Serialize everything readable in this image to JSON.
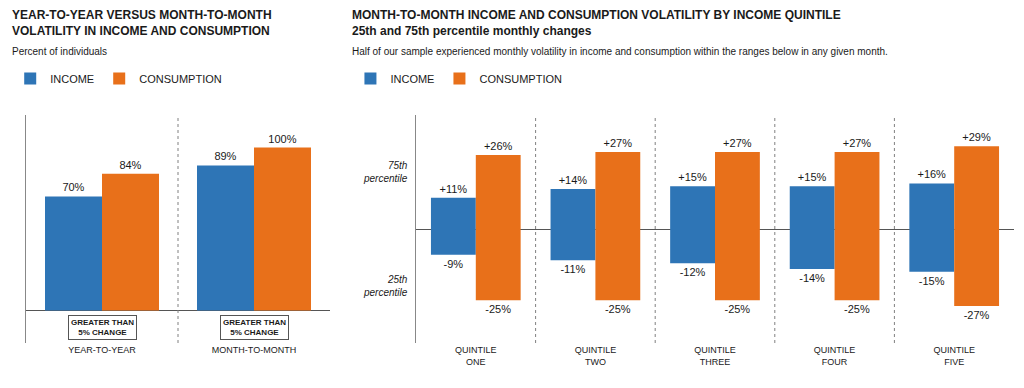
{
  "chart_data": [
    {
      "type": "bar",
      "title": "YEAR-TO-YEAR VERSUS MONTH-TO-MONTH\nVOLATILITY IN INCOME AND CONSUMPTION",
      "subtitle": "Percent of individuals",
      "categories": [
        "YEAR-TO-YEAR",
        "MONTH-TO-MONTH"
      ],
      "series": [
        {
          "name": "INCOME",
          "color": "#2E75B6",
          "values": [
            70,
            89
          ],
          "value_labels": [
            "70%",
            "89%"
          ]
        },
        {
          "name": "CONSUMPTION",
          "color": "#E8701A",
          "values": [
            84,
            100
          ],
          "value_labels": [
            "84%",
            "100%"
          ]
        }
      ],
      "annotations": [
        {
          "text": "GREATER THAN\n5% CHANGE",
          "category": "YEAR-TO-YEAR"
        },
        {
          "text": "GREATER THAN\n5% CHANGE",
          "category": "MONTH-TO-MONTH"
        }
      ],
      "ylim": [
        -20,
        120
      ],
      "tick_labels": "x",
      "grid": false,
      "legend": "top left",
      "data_labels": true
    },
    {
      "type": "bar",
      "title": "MONTH-TO-MONTH INCOME AND CONSUMPTION VOLATILITY BY INCOME QUINTILE\n25th and 75th percentile monthly changes",
      "subtitle": "Half of our sample experienced monthly volatility in income and consumption within the ranges below in any given month.",
      "categories": [
        "QUINTILE\nONE",
        "QUINTILE\nTWO",
        "QUINTILE\nTHREE",
        "QUINTILE\nFOUR",
        "QUINTILE\nFIVE"
      ],
      "series": [
        {
          "name": "INCOME",
          "color": "#2E75B6",
          "values": [
            11,
            14,
            15,
            15,
            16
          ],
          "value_labels": [
            "+11%",
            "+14%",
            "+15%",
            "+15%",
            "+16%"
          ]
        },
        {
          "name": "CONSUMPTION",
          "color": "#E8701A",
          "values": [
            26,
            27,
            27,
            27,
            29
          ],
          "value_labels": [
            "+26%",
            "+27%",
            "+27%",
            "+27%",
            "+29%"
          ]
        },
        {
          "name": "INCOME",
          "color": "#2E75B6",
          "values": [
            -9,
            -11,
            -12,
            -14,
            -15
          ],
          "value_labels": [
            "-9%",
            "-11%",
            "-12%",
            "-14%",
            "-15%"
          ]
        },
        {
          "name": "CONSUMPTION",
          "color": "#E8701A",
          "values": [
            -25,
            -25,
            -25,
            -25,
            -27
          ],
          "value_labels": [
            "-25%",
            "-25%",
            "-25%",
            "-25%",
            "-27%"
          ]
        }
      ],
      "annotations": [
        {
          "text": "75th\npercentile"
        },
        {
          "text": "25th\npercentile"
        }
      ],
      "ylim": [
        -40,
        40
      ],
      "tick_labels": "x",
      "grid": false,
      "legend": "top left",
      "data_labels": true
    }
  ]
}
